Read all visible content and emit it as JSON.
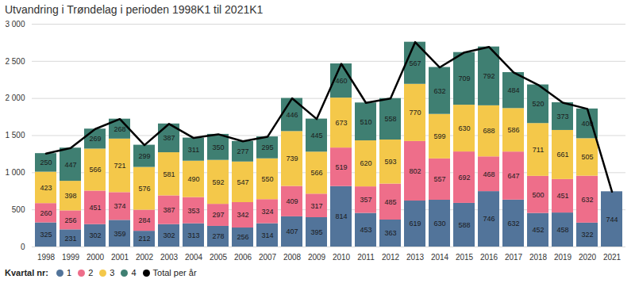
{
  "chart_data": {
    "type": "bar",
    "title": "Utvandring i Trøndelag i perioden 1998K1 til 2021K1",
    "legend_title": "Kvartal nr:",
    "categories": [
      "1998",
      "1999",
      "2000",
      "2001",
      "2002",
      "2003",
      "2004",
      "2005",
      "2006",
      "2007",
      "2008",
      "2009",
      "2010",
      "2011",
      "2012",
      "2013",
      "2014",
      "2015",
      "2016",
      "2017",
      "2018",
      "2019",
      "2020",
      "2021"
    ],
    "series": [
      {
        "name": "1",
        "type": "bar",
        "color": "#52749a",
        "values": [
          325,
          231,
          302,
          359,
          212,
          302,
          313,
          278,
          256,
          314,
          407,
          395,
          814,
          453,
          363,
          619,
          630,
          588,
          746,
          632,
          452,
          458,
          322,
          744
        ]
      },
      {
        "name": "2",
        "type": "bar",
        "color": "#ee6e8a",
        "values": [
          260,
          256,
          451,
          374,
          284,
          387,
          353,
          297,
          342,
          324,
          409,
          317,
          519,
          357,
          485,
          802,
          557,
          692,
          468,
          647,
          500,
          451,
          632,
          null
        ]
      },
      {
        "name": "3",
        "type": "bar",
        "color": "#f4c84a",
        "values": [
          423,
          398,
          566,
          721,
          576,
          581,
          490,
          592,
          547,
          550,
          739,
          566,
          673,
          620,
          593,
          770,
          599,
          630,
          688,
          586,
          711,
          661,
          505,
          null
        ]
      },
      {
        "name": "4",
        "type": "bar",
        "color": "#3f7f72",
        "values": [
          250,
          447,
          269,
          268,
          299,
          387,
          311,
          350,
          277,
          295,
          446,
          445,
          460,
          510,
          558,
          567,
          632,
          709,
          792,
          484,
          520,
          373,
          400,
          null
        ]
      },
      {
        "name": "Total per år",
        "type": "line",
        "color": "#000000",
        "values": [
          1258,
          1332,
          1588,
          1722,
          1371,
          1657,
          1467,
          1517,
          1422,
          1483,
          2001,
          1723,
          2466,
          1940,
          1999,
          2758,
          2418,
          2619,
          2694,
          2349,
          2183,
          1943,
          1859,
          744
        ]
      }
    ],
    "stacked": true,
    "data_labels": true,
    "ylim": [
      0,
      3000
    ],
    "yticks": [
      0,
      500,
      {
        "value": 1000,
        "label": "1 000"
      },
      {
        "value": 1500,
        "label": "1 500"
      },
      {
        "value": 2000,
        "label": "2 000"
      },
      {
        "value": 2500,
        "label": "2 500"
      },
      {
        "value": 3000,
        "label": "3 000"
      }
    ],
    "grid": true,
    "legend": "bottom-left"
  }
}
